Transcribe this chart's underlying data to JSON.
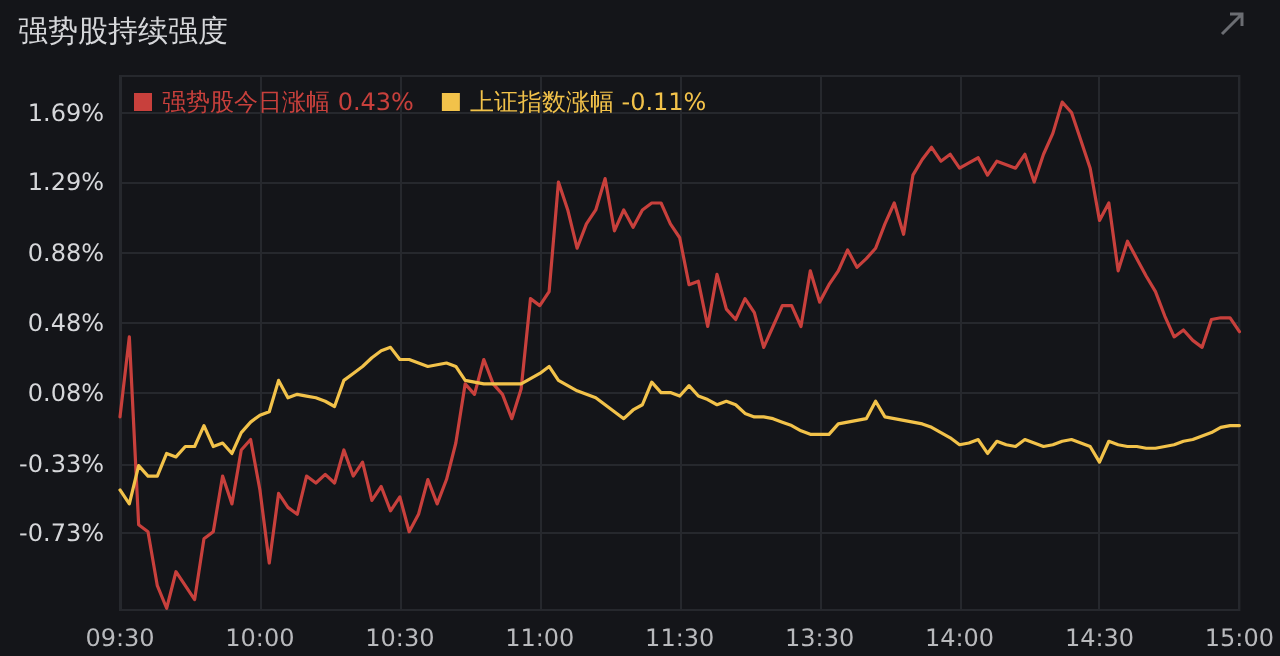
{
  "chart_data": {
    "type": "line",
    "title": "强势股持续强度",
    "grid": true,
    "legend": "top left",
    "marker": "none",
    "line_style": "solid",
    "categories": [
      "09:30",
      null,
      null,
      null,
      null,
      null,
      null,
      null,
      null,
      null,
      null,
      null,
      null,
      null,
      null,
      "10:00",
      null,
      null,
      null,
      null,
      null,
      null,
      null,
      null,
      null,
      null,
      null,
      null,
      null,
      null,
      "10:30",
      null,
      null,
      null,
      null,
      null,
      null,
      null,
      null,
      null,
      null,
      null,
      null,
      null,
      null,
      "11:00",
      null,
      null,
      null,
      null,
      null,
      null,
      null,
      null,
      null,
      null,
      null,
      null,
      null,
      null,
      "11:30",
      null,
      null,
      null,
      null,
      null,
      null,
      null,
      null,
      null,
      null,
      null,
      null,
      null,
      null,
      "13:30",
      null,
      null,
      null,
      null,
      null,
      null,
      null,
      null,
      null,
      null,
      null,
      null,
      null,
      null,
      "14:00",
      null,
      null,
      null,
      null,
      null,
      null,
      null,
      null,
      null,
      null,
      null,
      null,
      null,
      null,
      "14:30",
      null,
      null,
      null,
      null,
      null,
      null,
      null,
      null,
      null,
      null,
      null,
      null,
      null,
      null,
      "15:00"
    ],
    "ylim": [
      -1.17,
      1.9
    ],
    "yticks": [
      {
        "value": -0.73,
        "label": "-0.73%"
      },
      {
        "value": -0.33,
        "label": "-0.33%"
      },
      {
        "value": 0.08,
        "label": "0.08%"
      },
      {
        "value": 0.48,
        "label": "0.48%"
      },
      {
        "value": 0.88,
        "label": "0.88%"
      },
      {
        "value": 1.29,
        "label": "1.29%"
      },
      {
        "value": 1.69,
        "label": "1.69%"
      }
    ],
    "series": [
      {
        "name": "强势股今日涨幅 0.43%",
        "color": "#c8403c",
        "values": [
          -0.06,
          0.4,
          -0.68,
          -0.72,
          -1.03,
          -1.16,
          -0.95,
          -1.03,
          -1.11,
          -0.76,
          -0.72,
          -0.4,
          -0.56,
          -0.25,
          -0.19,
          -0.48,
          -0.9,
          -0.5,
          -0.58,
          -0.62,
          -0.4,
          -0.44,
          -0.39,
          -0.44,
          -0.25,
          -0.4,
          -0.32,
          -0.54,
          -0.46,
          -0.6,
          -0.52,
          -0.72,
          -0.62,
          -0.42,
          -0.56,
          -0.42,
          -0.21,
          0.13,
          0.07,
          0.27,
          0.13,
          0.07,
          -0.07,
          0.1,
          0.62,
          0.58,
          0.66,
          1.29,
          1.13,
          0.91,
          1.05,
          1.13,
          1.31,
          1.01,
          1.13,
          1.03,
          1.13,
          1.17,
          1.17,
          1.05,
          0.97,
          0.7,
          0.72,
          0.46,
          0.76,
          0.56,
          0.5,
          0.62,
          0.54,
          0.34,
          0.46,
          0.58,
          0.58,
          0.46,
          0.78,
          0.6,
          0.7,
          0.78,
          0.9,
          0.8,
          0.85,
          0.91,
          1.05,
          1.17,
          0.99,
          1.33,
          1.42,
          1.49,
          1.41,
          1.45,
          1.37,
          1.4,
          1.43,
          1.33,
          1.41,
          1.39,
          1.37,
          1.45,
          1.29,
          1.45,
          1.57,
          1.75,
          1.69,
          1.53,
          1.37,
          1.07,
          1.17,
          0.78,
          0.95,
          0.85,
          0.75,
          0.66,
          0.52,
          0.4,
          0.44,
          0.38,
          0.34,
          0.5,
          0.51,
          0.51,
          0.43
        ]
      },
      {
        "name": "上证指数涨幅 -0.11%",
        "color": "#f2c24a",
        "values": [
          -0.48,
          -0.56,
          -0.34,
          -0.4,
          -0.4,
          -0.27,
          -0.29,
          -0.23,
          -0.23,
          -0.11,
          -0.23,
          -0.21,
          -0.27,
          -0.15,
          -0.09,
          -0.05,
          -0.03,
          0.15,
          0.05,
          0.07,
          0.06,
          0.05,
          0.03,
          0.0,
          0.15,
          0.19,
          0.23,
          0.28,
          0.32,
          0.34,
          0.27,
          0.27,
          0.25,
          0.23,
          0.24,
          0.25,
          0.23,
          0.15,
          0.14,
          0.13,
          0.13,
          0.13,
          0.13,
          0.13,
          0.16,
          0.19,
          0.23,
          0.15,
          0.12,
          0.09,
          0.07,
          0.05,
          0.01,
          -0.03,
          -0.07,
          -0.02,
          0.01,
          0.14,
          0.08,
          0.08,
          0.06,
          0.12,
          0.06,
          0.04,
          0.01,
          0.03,
          0.01,
          -0.04,
          -0.06,
          -0.06,
          -0.07,
          -0.09,
          -0.11,
          -0.14,
          -0.16,
          -0.16,
          -0.16,
          -0.1,
          -0.09,
          -0.08,
          -0.07,
          0.03,
          -0.06,
          -0.07,
          -0.08,
          -0.09,
          -0.1,
          -0.12,
          -0.15,
          -0.18,
          -0.22,
          -0.21,
          -0.19,
          -0.27,
          -0.2,
          -0.22,
          -0.23,
          -0.19,
          -0.21,
          -0.23,
          -0.22,
          -0.2,
          -0.19,
          -0.21,
          -0.23,
          -0.32,
          -0.2,
          -0.22,
          -0.23,
          -0.23,
          -0.24,
          -0.24,
          -0.23,
          -0.22,
          -0.2,
          -0.19,
          -0.17,
          -0.15,
          -0.12,
          -0.11,
          -0.11
        ]
      }
    ]
  }
}
